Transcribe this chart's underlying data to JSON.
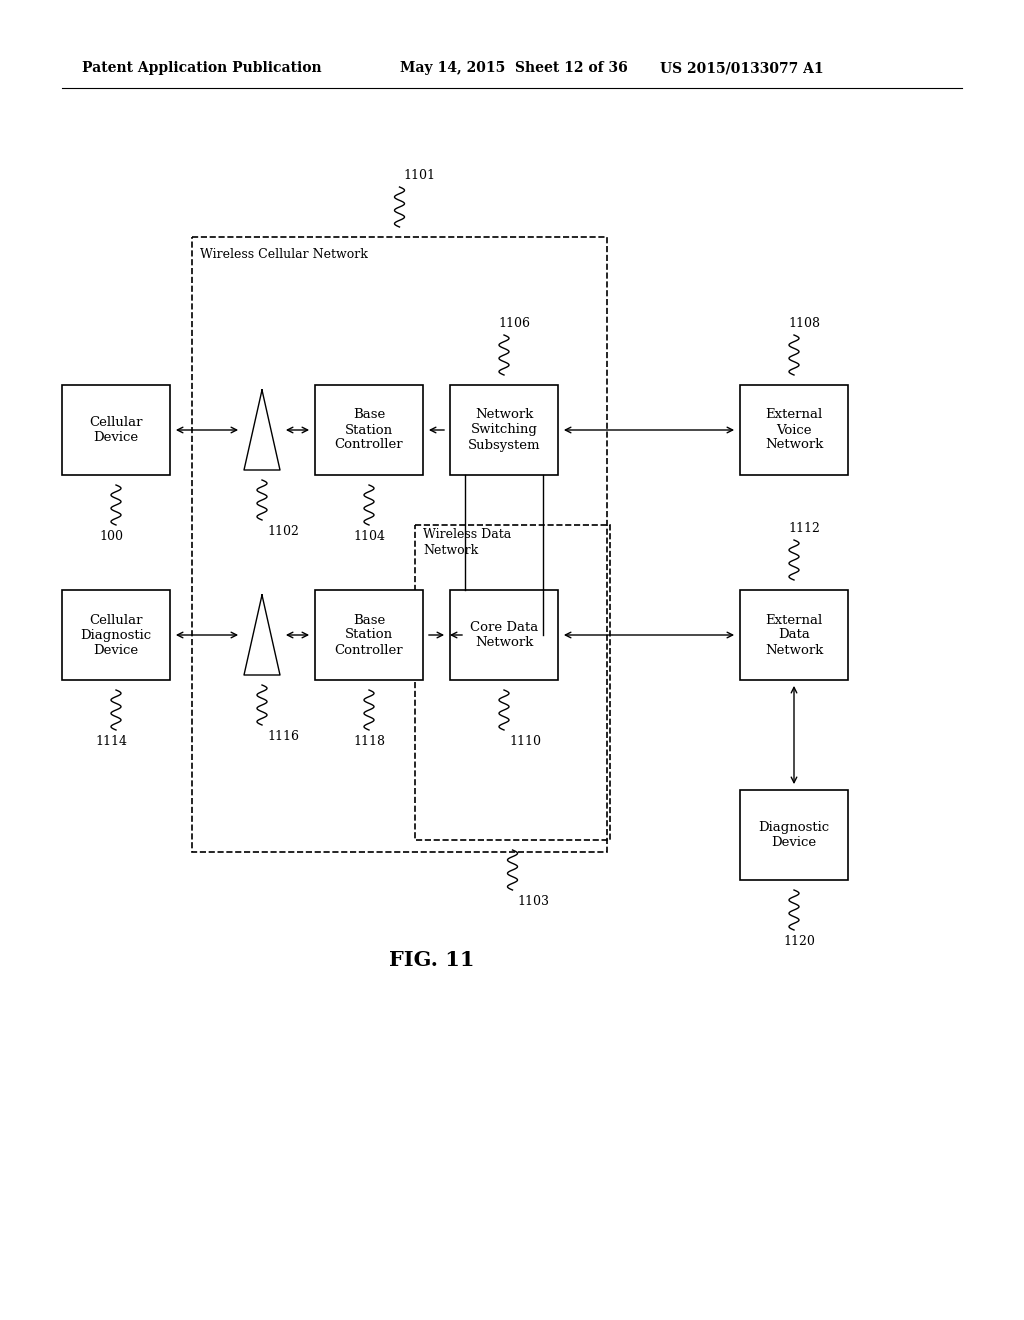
{
  "title_left": "Patent Application Publication",
  "title_mid": "May 14, 2015  Sheet 12 of 36",
  "title_right": "US 2015/0133077 A1",
  "fig_label": "FIG. 11",
  "background": "#ffffff"
}
